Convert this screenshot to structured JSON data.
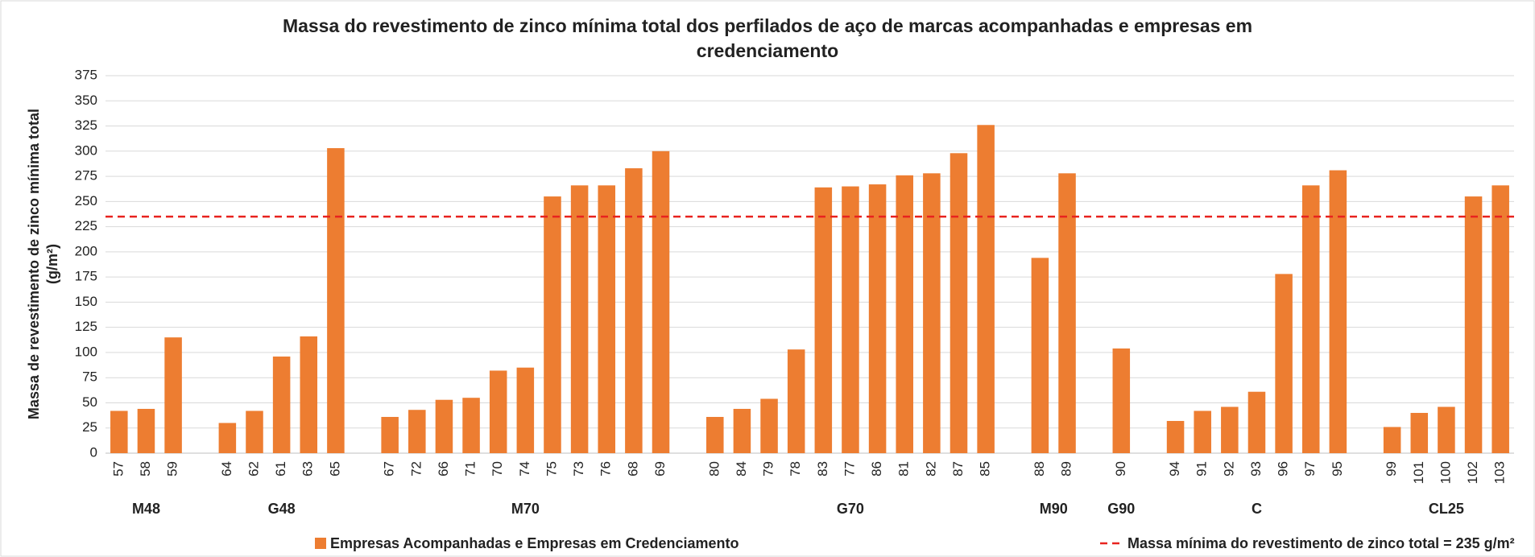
{
  "chart_data": {
    "type": "bar",
    "title": [
      "Massa do revestimento de zinco mínima total dos perfilados de aço de marcas acompanhadas e empresas em",
      "credenciamento"
    ],
    "ylabel": [
      "Massa de revestimento de zinco mínima total",
      "(g/m²)"
    ],
    "categories": [
      "57",
      "58",
      "59",
      null,
      "64",
      "62",
      "61",
      "63",
      "65",
      null,
      "67",
      "72",
      "66",
      "71",
      "70",
      "74",
      "75",
      "73",
      "76",
      "68",
      "69",
      null,
      "80",
      "84",
      "79",
      "78",
      "83",
      "77",
      "86",
      "81",
      "82",
      "87",
      "85",
      null,
      "88",
      "89",
      null,
      "90",
      null,
      "94",
      "91",
      "92",
      "93",
      "96",
      "97",
      "95",
      null,
      "99",
      "101",
      "100",
      "102",
      "103"
    ],
    "groups": [
      "M48",
      "G48",
      "M70",
      "G70",
      "M90",
      "G90",
      "C",
      "CL25"
    ],
    "series": [
      {
        "name": "Empresas Acompanhadas e Empresas em Credenciamento",
        "color": "#ed7d31",
        "values": [
          42,
          44,
          115,
          null,
          30,
          42,
          96,
          116,
          303,
          null,
          36,
          43,
          53,
          55,
          82,
          85,
          255,
          266,
          266,
          283,
          300,
          null,
          36,
          44,
          54,
          103,
          264,
          265,
          267,
          276,
          278,
          298,
          326,
          null,
          194,
          278,
          null,
          104,
          null,
          32,
          42,
          46,
          61,
          178,
          266,
          281,
          null,
          26,
          40,
          46,
          255,
          266
        ]
      }
    ],
    "reference_line": {
      "name": "Massa mínima do revestimento de zinco total = 235 g/m²",
      "value": 235,
      "color": "#e8231f"
    },
    "ylim": [
      0,
      375
    ],
    "yticks": [
      0,
      25,
      50,
      75,
      100,
      125,
      150,
      175,
      200,
      225,
      250,
      275,
      300,
      325,
      350,
      375
    ],
    "grid": true
  }
}
